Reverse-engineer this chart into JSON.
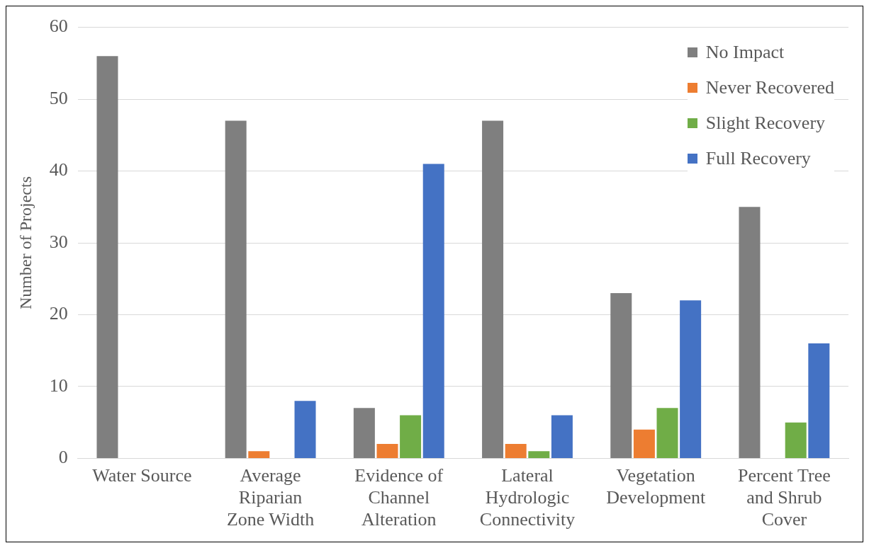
{
  "chart_data": {
    "type": "bar",
    "ylabel": "Number of Projects",
    "categories": [
      "Water Source",
      "Average Riparian Zone Width",
      "Evidence of Channel Alteration",
      "Lateral Hydrologic Connectivity",
      "Vegetation Development",
      "Percent Tree and Shrub Cover"
    ],
    "series": [
      {
        "name": "No Impact",
        "color": "#7f7f7f",
        "values": [
          56,
          47,
          7,
          47,
          23,
          35
        ]
      },
      {
        "name": "Never Recovered",
        "color": "#ed7d31",
        "values": [
          0,
          1,
          2,
          2,
          4,
          0
        ]
      },
      {
        "name": "Slight Recovery",
        "color": "#70ad47",
        "values": [
          0,
          0,
          6,
          1,
          7,
          5
        ]
      },
      {
        "name": "Full Recovery",
        "color": "#4472c4",
        "values": [
          0,
          8,
          41,
          6,
          22,
          16
        ]
      }
    ],
    "ylim": [
      0,
      60
    ],
    "yticks": [
      0,
      10,
      20,
      30,
      40,
      50,
      60
    ],
    "grid": "y",
    "legend": "top right"
  }
}
